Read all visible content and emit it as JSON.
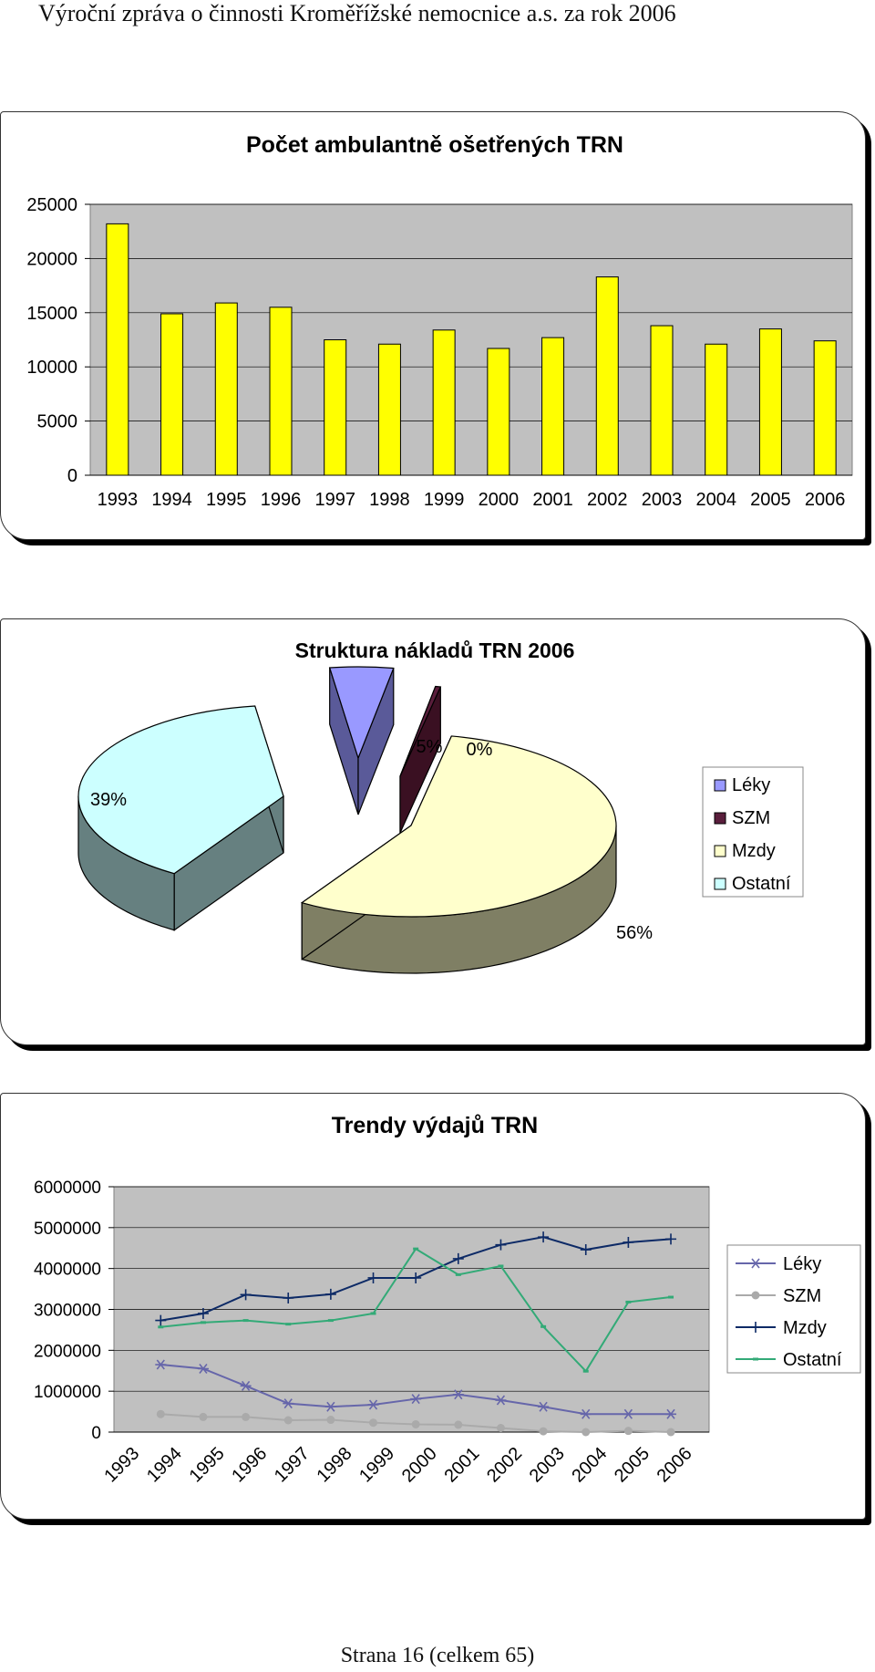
{
  "header": {
    "title": "Výroční zpráva o činnosti Kroměřížské nemocnice a.s. za rok 2006"
  },
  "footer": {
    "page": "Strana 16 (celkem 65)"
  },
  "chart_data": [
    {
      "type": "bar",
      "title": "Počet ambulantně ošetřených TRN",
      "categories": [
        "1993",
        "1994",
        "1995",
        "1996",
        "1997",
        "1998",
        "1999",
        "2000",
        "2001",
        "2002",
        "2003",
        "2004",
        "2005",
        "2006"
      ],
      "values": [
        23200,
        14900,
        15900,
        15500,
        12500,
        12100,
        13400,
        11700,
        12700,
        18300,
        13800,
        12100,
        13500,
        12400
      ],
      "ylim": [
        0,
        25000
      ],
      "yticks": [
        "0",
        "5000",
        "10000",
        "15000",
        "20000",
        "25000"
      ],
      "grid": true,
      "colors": {
        "bar": "#ffff00",
        "plot_bg": "#c0c0c0"
      }
    },
    {
      "type": "pie",
      "title": "Struktura nákladů TRN 2006",
      "slices": [
        {
          "name": "Léky",
          "value": 5,
          "label": "5%",
          "color": "#9999ff"
        },
        {
          "name": "SZM",
          "value": 0.4,
          "label": "0%",
          "color": "#5a1e3c"
        },
        {
          "name": "Mzdy",
          "value": 56,
          "label": "56%",
          "color": "#ffffcc"
        },
        {
          "name": "Ostatní",
          "value": 39,
          "label": "39%",
          "color": "#ccffff"
        }
      ],
      "legend": "right"
    },
    {
      "type": "line",
      "title": "Trendy výdajů TRN",
      "categories": [
        "1993",
        "1994",
        "1995",
        "1996",
        "1997",
        "1998",
        "1999",
        "2000",
        "2001",
        "2002",
        "2003",
        "2004",
        "2005",
        "2006"
      ],
      "series": [
        {
          "name": "Léky",
          "color": "#6666aa",
          "values": [
            1650000,
            1550000,
            1130000,
            700000,
            620000,
            670000,
            810000,
            920000,
            780000,
            620000,
            440000,
            440000,
            440000,
            null
          ]
        },
        {
          "name": "SZM",
          "color": "#aaaaaa",
          "values": [
            440000,
            370000,
            370000,
            290000,
            300000,
            230000,
            190000,
            180000,
            100000,
            20000,
            0,
            30000,
            0,
            null
          ]
        },
        {
          "name": "Mzdy",
          "color": "#0d2a66",
          "values": [
            2730000,
            2900000,
            3360000,
            3280000,
            3370000,
            3770000,
            3770000,
            4240000,
            4580000,
            4770000,
            4460000,
            4640000,
            4720000,
            null
          ]
        },
        {
          "name": "Ostatní",
          "color": "#33aa77",
          "values": [
            2570000,
            2680000,
            2730000,
            2640000,
            2730000,
            2900000,
            4480000,
            3850000,
            4060000,
            2580000,
            1490000,
            3180000,
            3300000,
            null
          ]
        }
      ],
      "ylim": [
        0,
        6000000
      ],
      "yticks": [
        "0",
        "1000000",
        "2000000",
        "3000000",
        "4000000",
        "5000000",
        "6000000"
      ],
      "legend": "right",
      "grid": true,
      "colors": {
        "plot_bg": "#c0c0c0"
      }
    }
  ]
}
